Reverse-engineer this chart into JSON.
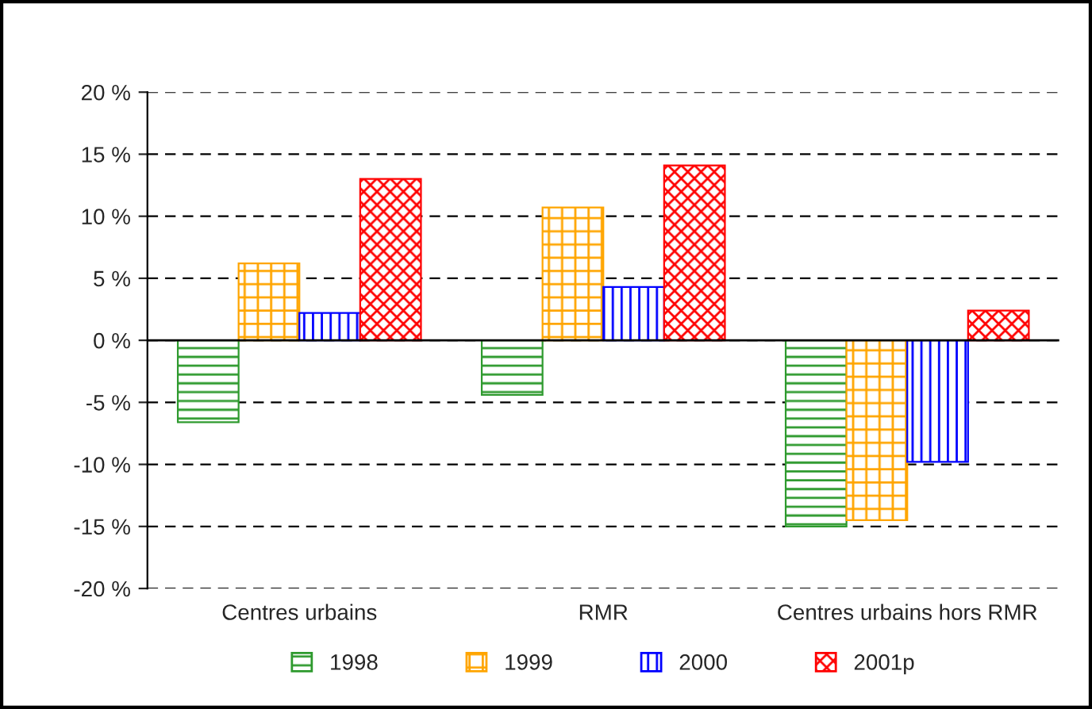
{
  "chart_data": {
    "type": "bar",
    "categories": [
      "Centres urbains",
      "RMR",
      "Centres urbains hors RMR"
    ],
    "series": [
      {
        "name": "1998",
        "color": "#2e9a2e",
        "values": [
          -6.6,
          -4.4,
          -15.0
        ]
      },
      {
        "name": "1999",
        "color": "#ffa500",
        "values": [
          6.2,
          10.7,
          -14.5
        ]
      },
      {
        "name": "2000",
        "color": "#0000ff",
        "values": [
          2.2,
          4.3,
          -9.8
        ]
      },
      {
        "name": "2001p",
        "color": "#ff0000",
        "values": [
          13.0,
          14.1,
          2.4
        ]
      }
    ],
    "ylim": [
      -20,
      20
    ],
    "yticks": [
      {
        "value": -20,
        "label": "-20 %"
      },
      {
        "value": -15,
        "label": "-15 %"
      },
      {
        "value": -10,
        "label": "-10 %"
      },
      {
        "value": -5,
        "label": "-5 %"
      },
      {
        "value": 0,
        "label": "0 %"
      },
      {
        "value": 5,
        "label": "5 %"
      },
      {
        "value": 10,
        "label": "10 %"
      },
      {
        "value": 15,
        "label": "15 %"
      },
      {
        "value": 20,
        "label": "20 %"
      }
    ],
    "ref_lines": [
      {
        "axis": "y",
        "value": 0,
        "color": "#000000",
        "line_style": "solid"
      }
    ],
    "grid": "y",
    "legend": "bottom"
  }
}
